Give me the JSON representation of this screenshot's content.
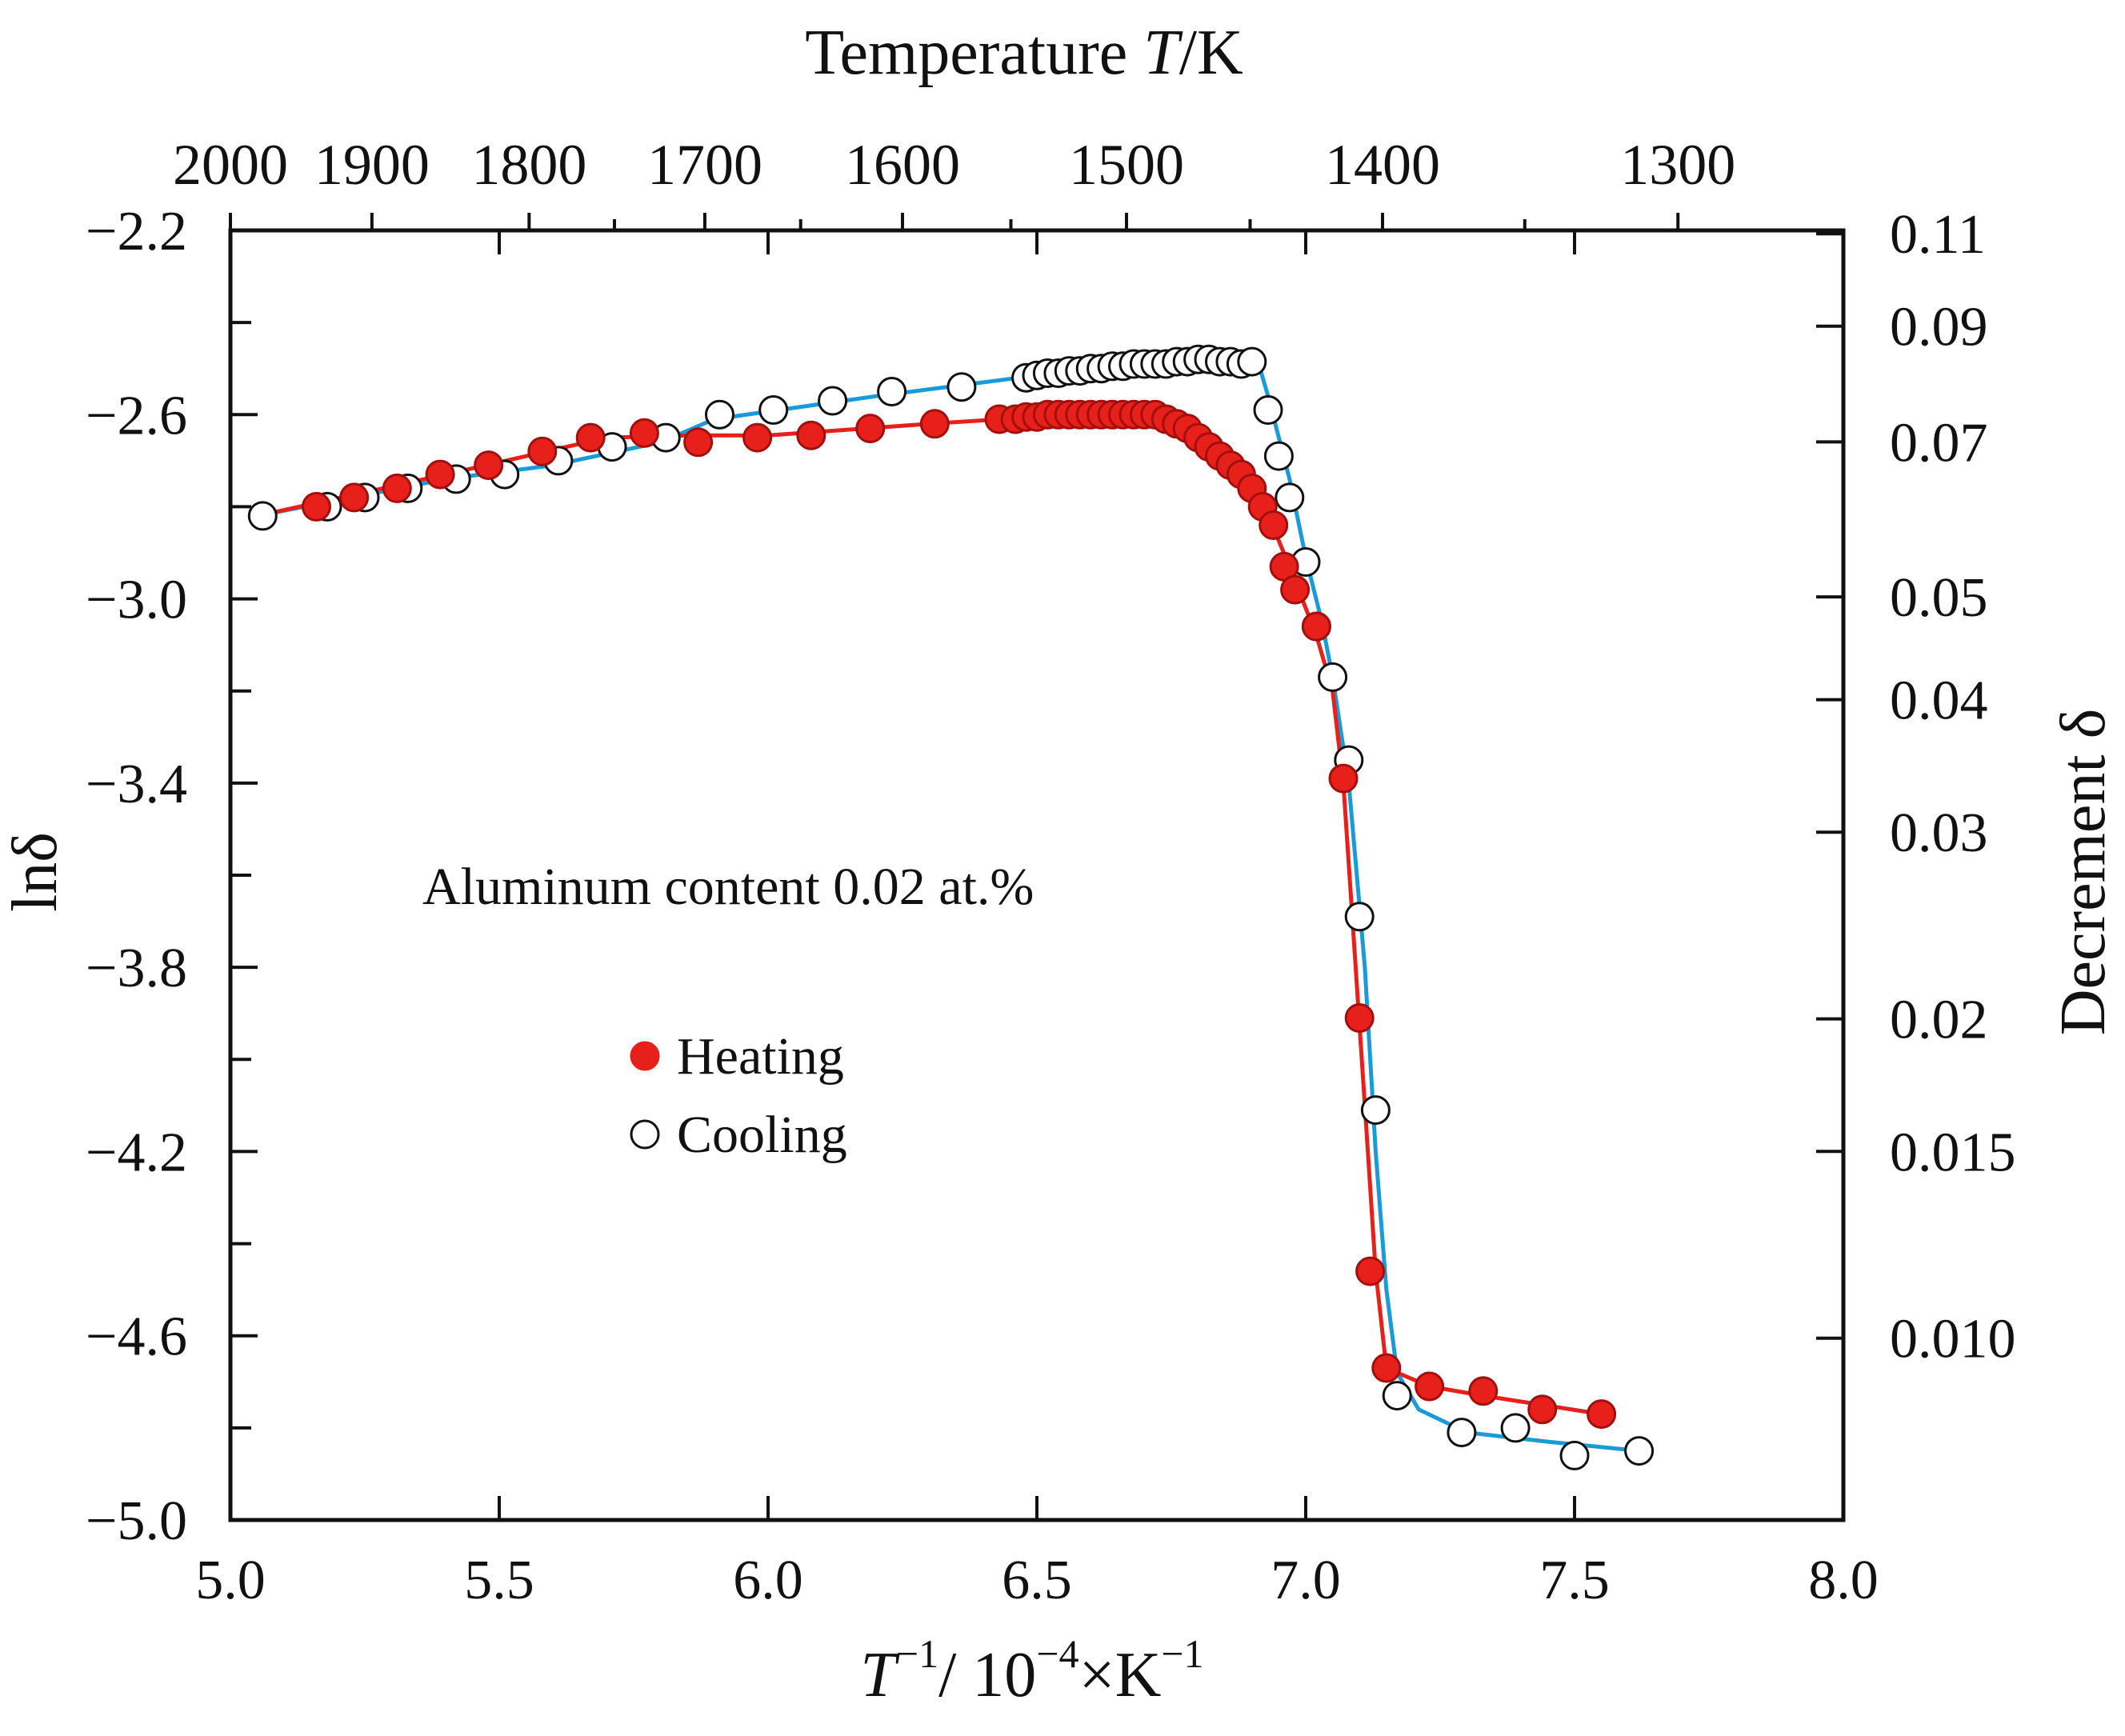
{
  "chart_data": {
    "type": "scatter",
    "title": "",
    "top_axis_label": {
      "prefix": "Temperature ",
      "italic": "T",
      "suffix": "/K"
    },
    "top_ticks": [
      {
        "label": "2000",
        "T": 2000
      },
      {
        "label": "1900",
        "T": 1900
      },
      {
        "label": "1800",
        "T": 1800
      },
      {
        "label": "1700",
        "T": 1700
      },
      {
        "label": "1600",
        "T": 1600
      },
      {
        "label": "1500",
        "T": 1500
      },
      {
        "label": "1400",
        "T": 1400
      },
      {
        "label": "1300",
        "T": 1300
      }
    ],
    "top_minor_T": [
      1750,
      1650,
      1550,
      1450,
      1350
    ],
    "xlabel": {
      "italic": "T",
      "sup1": "−1",
      "mid": "/ 10",
      "sup2": "−4",
      "unit": "×K",
      "sup3": "−1"
    },
    "xlim": [
      5.0,
      8.0
    ],
    "x_ticks": [
      {
        "label": "5.0",
        "v": 5.0
      },
      {
        "label": "5.5",
        "v": 5.5
      },
      {
        "label": "6.0",
        "v": 6.0
      },
      {
        "label": "6.5",
        "v": 6.5
      },
      {
        "label": "7.0",
        "v": 7.0
      },
      {
        "label": "7.5",
        "v": 7.5
      },
      {
        "label": "8.0",
        "v": 8.0
      }
    ],
    "ylabel": "lnδ",
    "ylim": [
      -5.0,
      -2.2
    ],
    "y_ticks": [
      {
        "label": "−2.2",
        "v": -2.2
      },
      {
        "label": "−2.6",
        "v": -2.6
      },
      {
        "label": "−3.0",
        "v": -3.0
      },
      {
        "label": "−3.4",
        "v": -3.4
      },
      {
        "label": "−3.8",
        "v": -3.8
      },
      {
        "label": "−4.2",
        "v": -4.2
      },
      {
        "label": "−4.6",
        "v": -4.6
      },
      {
        "label": "−5.0",
        "v": -5.0
      }
    ],
    "y_minor": [
      -2.4,
      -2.8,
      -3.2,
      -3.6,
      -4.0,
      -4.4,
      -4.8
    ],
    "y2label": "Decrement δ",
    "y2_ticks": [
      {
        "label": "0.11",
        "delta": 0.11
      },
      {
        "label": "0.09",
        "delta": 0.09
      },
      {
        "label": "0.07",
        "delta": 0.07
      },
      {
        "label": "0.05",
        "delta": 0.05
      },
      {
        "label": "0.04",
        "delta": 0.04
      },
      {
        "label": "0.03",
        "delta": 0.03
      },
      {
        "label": "0.02",
        "delta": 0.02
      },
      {
        "label": "0.015",
        "delta": 0.015
      },
      {
        "label": "0.010",
        "delta": 0.01
      }
    ],
    "annotation": "Aluminum content 0.02 at.%",
    "legend": [
      {
        "label": "Heating",
        "marker": "filled"
      },
      {
        "label": "Cooling",
        "marker": "open"
      }
    ],
    "series": [
      {
        "name": "Heating",
        "marker_color": "#e8201c",
        "line_color": "#e8201c",
        "points": [
          [
            5.16,
            -2.8
          ],
          [
            5.23,
            -2.78
          ],
          [
            5.31,
            -2.76
          ],
          [
            5.39,
            -2.73
          ],
          [
            5.48,
            -2.71
          ],
          [
            5.58,
            -2.68
          ],
          [
            5.67,
            -2.65
          ],
          [
            5.77,
            -2.64
          ],
          [
            5.87,
            -2.66
          ],
          [
            5.98,
            -2.65
          ],
          [
            6.08,
            -2.645
          ],
          [
            6.19,
            -2.63
          ],
          [
            6.31,
            -2.62
          ],
          [
            6.43,
            -2.61
          ],
          [
            6.46,
            -2.61
          ],
          [
            6.48,
            -2.605
          ],
          [
            6.5,
            -2.605
          ],
          [
            6.52,
            -2.6
          ],
          [
            6.54,
            -2.6
          ],
          [
            6.56,
            -2.6
          ],
          [
            6.58,
            -2.6
          ],
          [
            6.6,
            -2.6
          ],
          [
            6.62,
            -2.6
          ],
          [
            6.64,
            -2.6
          ],
          [
            6.66,
            -2.6
          ],
          [
            6.68,
            -2.6
          ],
          [
            6.7,
            -2.6
          ],
          [
            6.72,
            -2.6
          ],
          [
            6.74,
            -2.61
          ],
          [
            6.76,
            -2.62
          ],
          [
            6.78,
            -2.63
          ],
          [
            6.8,
            -2.65
          ],
          [
            6.82,
            -2.67
          ],
          [
            6.84,
            -2.69
          ],
          [
            6.86,
            -2.71
          ],
          [
            6.88,
            -2.73
          ],
          [
            6.9,
            -2.76
          ],
          [
            6.92,
            -2.8
          ],
          [
            6.94,
            -2.84
          ],
          [
            6.96,
            -2.93
          ],
          [
            6.98,
            -2.98
          ],
          [
            7.02,
            -3.06
          ],
          [
            7.07,
            -3.39
          ],
          [
            7.1,
            -3.91
          ],
          [
            7.12,
            -4.46
          ],
          [
            7.15,
            -4.67
          ],
          [
            7.23,
            -4.71
          ],
          [
            7.33,
            -4.72
          ],
          [
            7.44,
            -4.76
          ],
          [
            7.55,
            -4.77
          ]
        ],
        "curve": [
          [
            5.05,
            -2.82
          ],
          [
            5.4,
            -2.73
          ],
          [
            5.7,
            -2.65
          ],
          [
            5.85,
            -2.645
          ],
          [
            6.0,
            -2.645
          ],
          [
            6.3,
            -2.62
          ],
          [
            6.5,
            -2.605
          ],
          [
            6.7,
            -2.6
          ],
          [
            6.78,
            -2.62
          ],
          [
            6.86,
            -2.7
          ],
          [
            6.92,
            -2.79
          ],
          [
            6.97,
            -2.93
          ],
          [
            7.02,
            -3.08
          ],
          [
            7.05,
            -3.2
          ],
          [
            7.07,
            -3.4
          ],
          [
            7.09,
            -3.75
          ],
          [
            7.11,
            -4.1
          ],
          [
            7.13,
            -4.46
          ],
          [
            7.15,
            -4.67
          ],
          [
            7.23,
            -4.71
          ],
          [
            7.33,
            -4.73
          ],
          [
            7.44,
            -4.75
          ],
          [
            7.55,
            -4.77
          ]
        ]
      },
      {
        "name": "Cooling",
        "marker_color": "#ffffff",
        "line_color": "#1a9bd7",
        "points": [
          [
            5.06,
            -2.82
          ],
          [
            5.18,
            -2.8
          ],
          [
            5.25,
            -2.78
          ],
          [
            5.33,
            -2.76
          ],
          [
            5.42,
            -2.74
          ],
          [
            5.51,
            -2.73
          ],
          [
            5.61,
            -2.7
          ],
          [
            5.71,
            -2.67
          ],
          [
            5.81,
            -2.65
          ],
          [
            5.91,
            -2.6
          ],
          [
            6.01,
            -2.59
          ],
          [
            6.12,
            -2.57
          ],
          [
            6.23,
            -2.55
          ],
          [
            6.36,
            -2.54
          ],
          [
            6.48,
            -2.52
          ],
          [
            6.5,
            -2.515
          ],
          [
            6.52,
            -2.51
          ],
          [
            6.54,
            -2.51
          ],
          [
            6.56,
            -2.505
          ],
          [
            6.58,
            -2.505
          ],
          [
            6.6,
            -2.5
          ],
          [
            6.62,
            -2.5
          ],
          [
            6.64,
            -2.495
          ],
          [
            6.66,
            -2.495
          ],
          [
            6.68,
            -2.49
          ],
          [
            6.7,
            -2.49
          ],
          [
            6.72,
            -2.49
          ],
          [
            6.74,
            -2.49
          ],
          [
            6.76,
            -2.485
          ],
          [
            6.78,
            -2.485
          ],
          [
            6.8,
            -2.48
          ],
          [
            6.82,
            -2.48
          ],
          [
            6.84,
            -2.485
          ],
          [
            6.86,
            -2.485
          ],
          [
            6.88,
            -2.49
          ],
          [
            6.9,
            -2.485
          ],
          [
            6.93,
            -2.59
          ],
          [
            6.95,
            -2.69
          ],
          [
            6.97,
            -2.78
          ],
          [
            7.0,
            -2.92
          ],
          [
            7.02,
            -3.06
          ],
          [
            7.05,
            -3.17
          ],
          [
            7.08,
            -3.35
          ],
          [
            7.1,
            -3.69
          ],
          [
            7.13,
            -4.11
          ],
          [
            7.17,
            -4.73
          ],
          [
            7.29,
            -4.81
          ],
          [
            7.39,
            -4.8
          ],
          [
            7.5,
            -4.86
          ],
          [
            7.62,
            -4.85
          ]
        ],
        "curve": [
          [
            5.05,
            -2.82
          ],
          [
            5.4,
            -2.74
          ],
          [
            5.6,
            -2.71
          ],
          [
            5.8,
            -2.66
          ],
          [
            5.9,
            -2.61
          ],
          [
            6.2,
            -2.56
          ],
          [
            6.5,
            -2.515
          ],
          [
            6.7,
            -2.49
          ],
          [
            6.91,
            -2.48
          ],
          [
            6.93,
            -2.56
          ],
          [
            6.97,
            -2.74
          ],
          [
            7.0,
            -2.91
          ],
          [
            7.03,
            -3.05
          ],
          [
            7.05,
            -3.17
          ],
          [
            7.08,
            -3.4
          ],
          [
            7.11,
            -3.8
          ],
          [
            7.13,
            -4.2
          ],
          [
            7.15,
            -4.5
          ],
          [
            7.17,
            -4.68
          ],
          [
            7.21,
            -4.76
          ],
          [
            7.3,
            -4.81
          ],
          [
            7.45,
            -4.83
          ],
          [
            7.62,
            -4.85
          ]
        ]
      }
    ]
  }
}
